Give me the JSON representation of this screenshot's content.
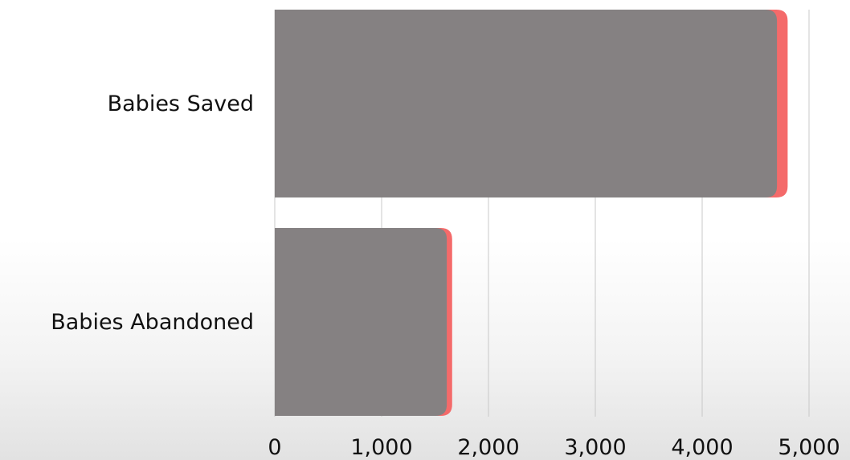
{
  "chart_data": {
    "type": "bar",
    "orientation": "horizontal",
    "categories": [
      "Babies Saved",
      "Babies Abandoned"
    ],
    "series": [
      {
        "values": [
          4700,
          1610
        ]
      },
      {
        "values": [
          100,
          50
        ]
      }
    ],
    "x_tick_labels": [
      "0",
      "1,000",
      "2,000",
      "3,000",
      "4,000",
      "5,000"
    ],
    "xlim": [
      0,
      5000
    ],
    "grid": true,
    "legend": "none",
    "colors": {
      "bar_main": "#858182",
      "bar_accent": "#f46a6a",
      "gridline": "#c8c8c8",
      "text": "#111111"
    }
  }
}
